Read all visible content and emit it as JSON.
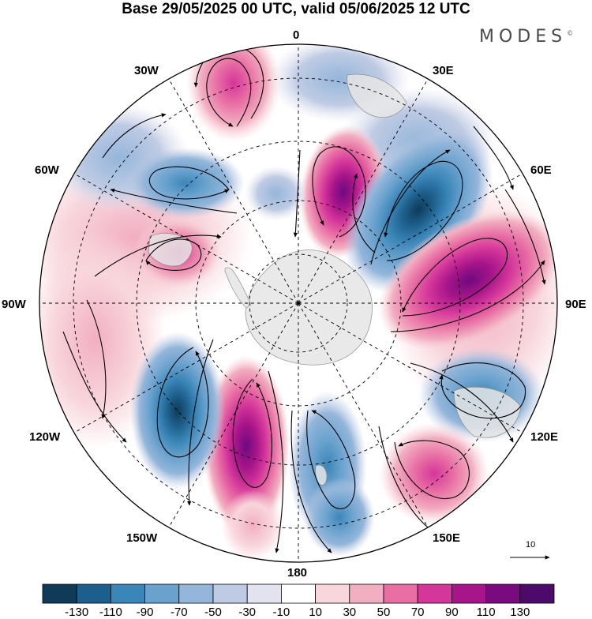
{
  "title": "Base 29/05/2025 00 UTC, valid 05/06/2025 12 UTC",
  "brand": {
    "text": "MODES",
    "mark": "©"
  },
  "longitude_labels": {
    "lon_0": "0",
    "lon_30e": "30E",
    "lon_60e": "60E",
    "lon_90e": "90E",
    "lon_120e": "120E",
    "lon_150e": "150E",
    "lon_180": "180",
    "lon_150w": "150W",
    "lon_120w": "120W",
    "lon_90w": "90W",
    "lon_60w": "60W",
    "lon_30w": "30W"
  },
  "vector_reference": {
    "label": "10"
  },
  "colorbar": {
    "labels": [
      "-130",
      "-110",
      "-90",
      "-70",
      "-50",
      "-30",
      "-10",
      "10",
      "30",
      "50",
      "70",
      "90",
      "110",
      "130"
    ],
    "colors": [
      "#0f3b58",
      "#1d5f8c",
      "#3b86b8",
      "#6aa2ce",
      "#94b6da",
      "#bfcbe4",
      "#e3e3f0",
      "#ffffff",
      "#f8d6dc",
      "#f2afc2",
      "#e86ea4",
      "#d4369a",
      "#a8158a",
      "#7a0a80",
      "#4d0a6b"
    ]
  },
  "projection": "south-polar-stereographic",
  "landmass": "Antarctica",
  "anomaly_centers": [
    {
      "lon": "15E",
      "sign": "positive",
      "level": 110
    },
    {
      "lon": "40E",
      "sign": "negative",
      "level": -130
    },
    {
      "lon": "75E",
      "sign": "positive",
      "level": 110
    },
    {
      "lon": "110E",
      "sign": "negative",
      "level": -70
    },
    {
      "lon": "145E",
      "sign": "positive",
      "level": 90
    },
    {
      "lon": "170E",
      "sign": "negative",
      "level": -70
    },
    {
      "lon": "160W",
      "sign": "positive",
      "level": 130
    },
    {
      "lon": "135W",
      "sign": "negative",
      "level": -90
    },
    {
      "lon": "65W",
      "sign": "positive",
      "level": 70
    },
    {
      "lon": "50W",
      "sign": "negative",
      "level": -70
    },
    {
      "lon": "20W",
      "sign": "positive",
      "level": 70
    }
  ]
}
